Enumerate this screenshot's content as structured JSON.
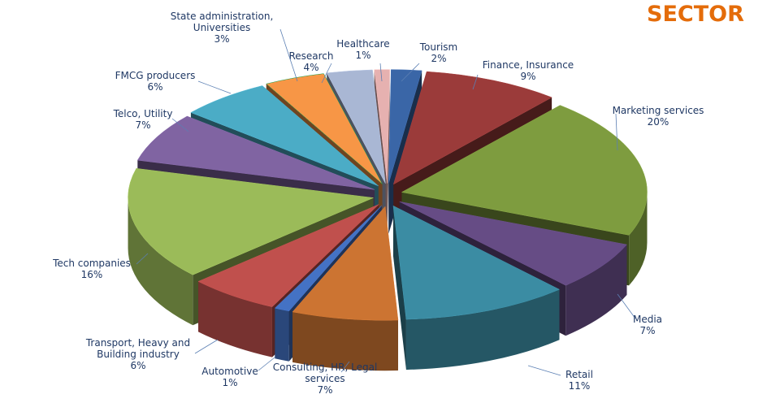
{
  "chart_data": {
    "type": "pie",
    "style": "3d-exploded",
    "title": "SECTOR",
    "title_color": "#E46C0A",
    "label_color": "#1F3864",
    "slices": [
      {
        "label": "Tourism",
        "value": 2,
        "value_label": "2%",
        "color": "#3A66A7"
      },
      {
        "label": "Finance, Insurance",
        "value": 9,
        "value_label": "9%",
        "color": "#9B3B3A"
      },
      {
        "label": "Marketing services",
        "value": 20,
        "value_label": "20%",
        "color": "#7E9C3F"
      },
      {
        "label": "Media",
        "value": 7,
        "value_label": "7%",
        "color": "#664C85"
      },
      {
        "label": "Retail",
        "value": 11,
        "value_label": "11%",
        "color": "#3B8CA3"
      },
      {
        "label": "Consulting, HR, Legal services",
        "value": 7,
        "value_label": "7%",
        "color": "#CC7432"
      },
      {
        "label": "Automotive",
        "value": 1,
        "value_label": "1%",
        "color": "#4472C4"
      },
      {
        "label": "Transport, Heavy and Building industry",
        "value": 6,
        "value_label": "6%",
        "color": "#C0504D"
      },
      {
        "label": "Tech companies",
        "value": 16,
        "value_label": "16%",
        "color": "#9BBB59"
      },
      {
        "label": "Telco, Utility",
        "value": 7,
        "value_label": "7%",
        "color": "#8064A2"
      },
      {
        "label": "FMCG producers",
        "value": 6,
        "value_label": "6%",
        "color": "#4BACC6"
      },
      {
        "label": "Research",
        "value": 4,
        "value_label": "4%",
        "color": "#F79646"
      },
      {
        "label": "State administration, Universities",
        "value": 3,
        "value_label": "3%",
        "color": "#A9B7D4"
      },
      {
        "label": "Healthcare",
        "value": 1,
        "value_label": "1%",
        "color": "#E6B1B0"
      }
    ]
  }
}
